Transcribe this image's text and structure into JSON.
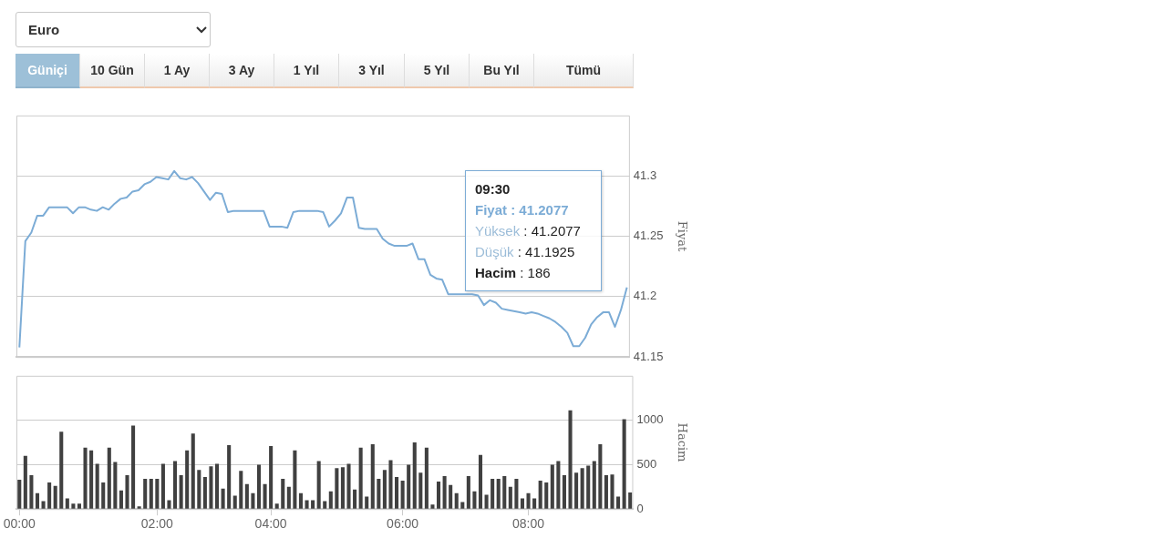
{
  "chart_data": [
    {
      "type": "other",
      "annotations": [
        "Euro",
        "Güniçi",
        "10 Gün",
        "1 Ay",
        "3 Ay",
        "1 Yıl",
        "3 Yıl",
        "5 Yıl",
        "Bu Yıl",
        "Tümü"
      ]
    },
    {
      "type": "line",
      "ylabel": "Fiyat",
      "color": "#7cacd6",
      "marker": "none",
      "grid": "y",
      "tick_labels": "y",
      "ylim": [
        41.15,
        41.35
      ],
      "yticks": [
        41.15,
        41.2,
        41.25,
        41.3
      ],
      "categories": [
        null,
        null,
        null,
        null,
        null,
        null,
        null,
        null,
        null,
        null,
        null,
        null,
        null,
        null,
        null,
        null,
        null,
        null,
        null,
        null,
        null,
        null,
        null,
        null,
        null,
        null,
        null,
        null,
        null,
        null,
        null,
        null,
        null,
        null,
        null,
        null,
        null,
        null,
        null,
        null,
        null,
        null,
        null,
        null,
        null,
        null,
        null,
        null,
        null,
        null,
        null,
        null,
        null,
        null,
        null,
        null,
        null,
        null,
        null,
        null,
        null,
        null,
        null,
        null,
        null,
        null,
        null,
        null,
        null,
        null,
        null,
        null,
        null,
        null,
        null,
        null,
        null,
        null,
        null,
        null,
        null,
        null,
        null,
        null,
        null,
        null,
        null,
        null,
        null,
        null,
        null,
        null,
        null,
        null,
        null,
        null,
        null,
        null,
        null,
        null,
        null,
        null,
        null
      ],
      "values": [
        41.158,
        41.246,
        41.253,
        41.267,
        41.267,
        41.274,
        41.274,
        41.274,
        41.274,
        41.269,
        41.274,
        41.274,
        41.272,
        41.271,
        41.274,
        41.272,
        41.277,
        41.281,
        41.282,
        41.287,
        41.288,
        41.293,
        41.295,
        41.299,
        41.298,
        41.297,
        41.304,
        41.298,
        41.297,
        41.299,
        41.294,
        41.287,
        41.28,
        41.286,
        41.285,
        41.27,
        41.271,
        41.271,
        41.271,
        41.271,
        41.271,
        41.271,
        41.258,
        41.258,
        41.258,
        41.257,
        41.27,
        41.271,
        41.271,
        41.271,
        41.271,
        41.27,
        41.258,
        41.263,
        41.269,
        41.282,
        41.282,
        41.257,
        41.256,
        41.256,
        41.256,
        41.248,
        41.244,
        41.242,
        41.242,
        41.242,
        41.244,
        41.231,
        41.231,
        41.218,
        41.215,
        41.214,
        41.202,
        41.202,
        41.202,
        41.202,
        41.202,
        41.201,
        41.193,
        41.197,
        41.195,
        41.19,
        41.189,
        41.188,
        41.187,
        41.186,
        41.187,
        41.186,
        41.184,
        41.182,
        41.179,
        41.175,
        41.17,
        41.159,
        41.159,
        41.166,
        41.177,
        41.183,
        41.187,
        41.187,
        41.175,
        41.189,
        41.2077
      ],
      "annotations": [
        "09:30",
        "Fiyat : 41.2077",
        "Yüksek : 41.2077",
        "Düşük : 41.1925",
        "Hacim : 186"
      ]
    },
    {
      "type": "bar",
      "ylabel": "Hacim",
      "color": "#404040",
      "grid": "y",
      "ylim": [
        0,
        1500
      ],
      "yticks": [
        0,
        500,
        1000
      ],
      "categories": [
        "00:00",
        null,
        null,
        null,
        null,
        null,
        null,
        null,
        null,
        null,
        null,
        null,
        null,
        null,
        null,
        null,
        null,
        null,
        null,
        null,
        null,
        null,
        null,
        "02:00",
        null,
        null,
        null,
        null,
        null,
        null,
        null,
        null,
        null,
        null,
        null,
        null,
        null,
        null,
        null,
        null,
        null,
        null,
        "04:00",
        null,
        null,
        null,
        null,
        null,
        null,
        null,
        null,
        null,
        null,
        null,
        null,
        null,
        null,
        null,
        null,
        null,
        null,
        null,
        null,
        null,
        "06:00",
        null,
        null,
        null,
        null,
        null,
        null,
        null,
        null,
        null,
        null,
        null,
        null,
        null,
        null,
        null,
        null,
        null,
        null,
        null,
        null,
        "08:00",
        null,
        null,
        null,
        null,
        null,
        null,
        null,
        null,
        null,
        null,
        null,
        null,
        null,
        null,
        null,
        null,
        null
      ],
      "values": [
        330,
        600,
        380,
        180,
        90,
        300,
        260,
        870,
        120,
        60,
        60,
        690,
        660,
        510,
        300,
        690,
        530,
        210,
        380,
        940,
        30,
        340,
        340,
        340,
        510,
        100,
        540,
        380,
        660,
        850,
        440,
        360,
        480,
        510,
        230,
        720,
        150,
        430,
        280,
        180,
        500,
        280,
        710,
        60,
        340,
        250,
        660,
        180,
        100,
        100,
        540,
        90,
        200,
        460,
        470,
        510,
        220,
        690,
        140,
        730,
        340,
        440,
        550,
        360,
        320,
        500,
        750,
        410,
        690,
        50,
        310,
        370,
        270,
        180,
        80,
        370,
        200,
        610,
        160,
        340,
        340,
        370,
        250,
        340,
        120,
        180,
        120,
        320,
        300,
        500,
        540,
        380,
        1110,
        410,
        460,
        490,
        540,
        730,
        380,
        390,
        140,
        1010,
        186
      ]
    }
  ]
}
